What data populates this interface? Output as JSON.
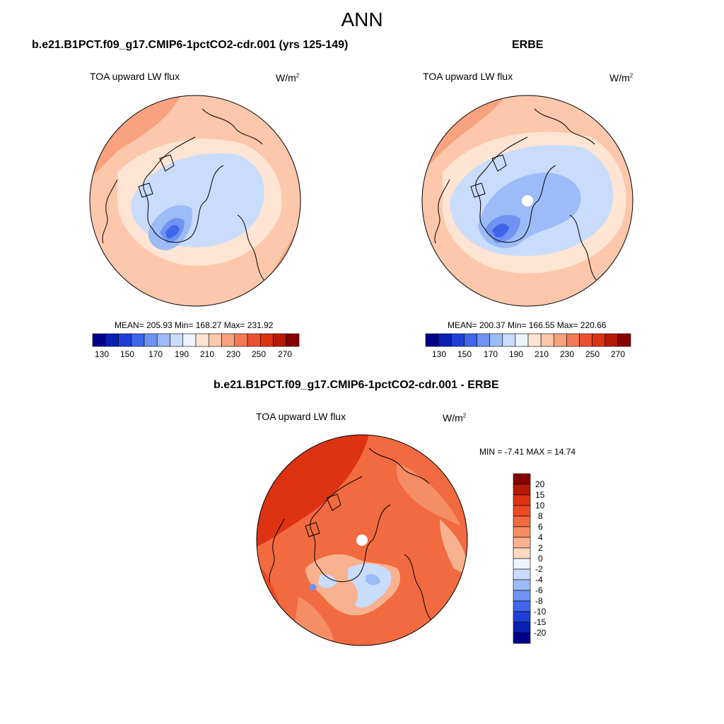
{
  "figure_title": "ANN",
  "panels": [
    {
      "title": "b.e21.B1PCT.f09_g17.CMIP6-1pctCO2-cdr.001 (yrs 125-149)",
      "variable": "TOA upward LW flux",
      "units": "W/m",
      "units_sup": "2",
      "stats": "MEAN= 205.93  Min= 168.27  Max= 231.92"
    },
    {
      "title": "ERBE",
      "variable": "TOA upward LW flux",
      "units": "W/m",
      "units_sup": "2",
      "stats": "MEAN= 200.37  Min= 166.55  Max= 220.66"
    },
    {
      "title": "b.e21.B1PCT.f09_g17.CMIP6-1pctCO2-cdr.001 - ERBE",
      "variable": "TOA upward LW flux",
      "units": "W/m",
      "units_sup": "2",
      "stats": "MIN =  -7.41 MAX =  14.74"
    }
  ],
  "colorbar_abs": {
    "tick_labels": [
      "130",
      "150",
      "170",
      "190",
      "210",
      "230",
      "250",
      "270"
    ],
    "colors": [
      "#00008b",
      "#0a1fb4",
      "#1f3fd8",
      "#3f66ea",
      "#6f93f2",
      "#9dbcf7",
      "#c9dcfb",
      "#eef4ff",
      "#fde4d3",
      "#fcc7ab",
      "#f8a27f",
      "#f47a56",
      "#ec5230",
      "#dd3312",
      "#b51a06",
      "#860000"
    ]
  },
  "colorbar_diff": {
    "tick_labels": [
      "20",
      "15",
      "10",
      "8",
      "6",
      "4",
      "2",
      "0",
      "-2",
      "-4",
      "-6",
      "-8",
      "-10",
      "-15",
      "-20"
    ],
    "colors": [
      "#860000",
      "#b51a06",
      "#dd3312",
      "#ec4a22",
      "#f26a40",
      "#f58d65",
      "#f9b28f",
      "#fcd9c0",
      "#eef4ff",
      "#c9dcfb",
      "#9dbcf7",
      "#6f93f2",
      "#3f66ea",
      "#1f3fd8",
      "#0a1fb4",
      "#00008b"
    ]
  }
}
